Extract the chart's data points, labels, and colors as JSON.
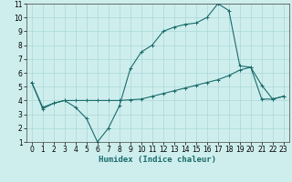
{
  "title": "",
  "xlabel": "Humidex (Indice chaleur)",
  "ylabel": "",
  "background_color": "#ceeeed",
  "grid_color": "#aad8d8",
  "line_color": "#1a6b6b",
  "xlim": [
    -0.5,
    23.5
  ],
  "ylim": [
    1,
    11
  ],
  "xticks": [
    0,
    1,
    2,
    3,
    4,
    5,
    6,
    7,
    8,
    9,
    10,
    11,
    12,
    13,
    14,
    15,
    16,
    17,
    18,
    19,
    20,
    21,
    22,
    23
  ],
  "yticks": [
    1,
    2,
    3,
    4,
    5,
    6,
    7,
    8,
    9,
    10,
    11
  ],
  "line1_x": [
    0,
    1,
    2,
    3,
    4,
    5,
    6,
    7,
    8,
    9,
    10,
    11,
    12,
    13,
    14,
    15,
    16,
    17,
    18,
    19,
    20,
    21,
    22,
    23
  ],
  "line1_y": [
    5.3,
    3.4,
    3.8,
    4.0,
    3.5,
    2.7,
    1.0,
    2.0,
    3.6,
    6.3,
    7.5,
    8.0,
    9.0,
    9.3,
    9.5,
    9.6,
    10.0,
    11.0,
    10.5,
    6.5,
    6.4,
    5.1,
    4.1,
    4.3
  ],
  "line2_x": [
    0,
    1,
    2,
    3,
    4,
    5,
    6,
    7,
    8,
    9,
    10,
    11,
    12,
    13,
    14,
    15,
    16,
    17,
    18,
    19,
    20,
    21,
    22,
    23
  ],
  "line2_y": [
    5.3,
    3.5,
    3.8,
    4.0,
    4.0,
    4.0,
    4.0,
    4.0,
    4.0,
    4.05,
    4.1,
    4.3,
    4.5,
    4.7,
    4.9,
    5.1,
    5.3,
    5.5,
    5.8,
    6.2,
    6.4,
    4.1,
    4.1,
    4.3
  ],
  "marker": "+",
  "markersize": 3,
  "linewidth": 0.8,
  "tick_fontsize": 5.5,
  "xlabel_fontsize": 6.5
}
